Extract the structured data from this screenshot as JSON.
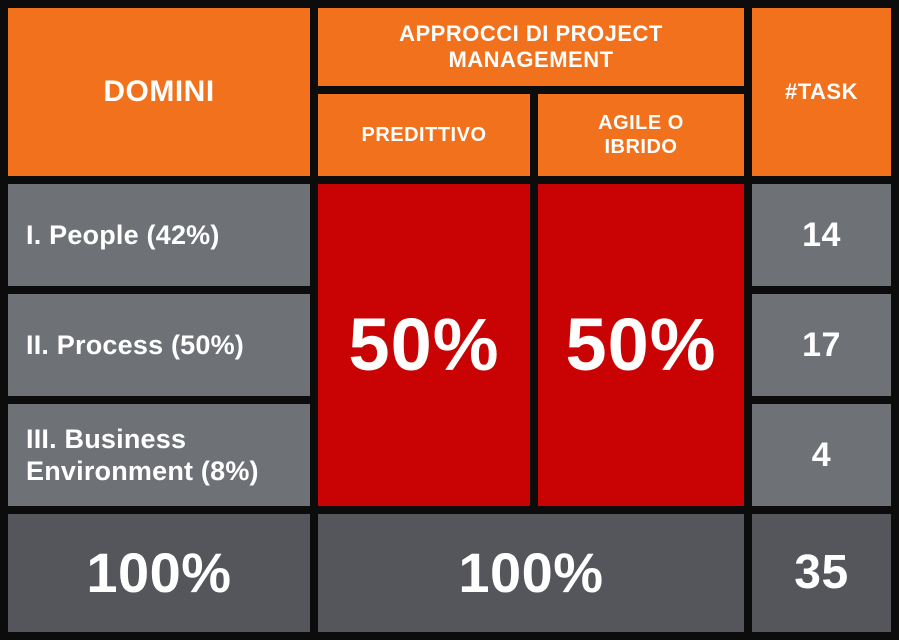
{
  "colors": {
    "orange": "#F2711C",
    "red": "#C90303",
    "gray": "#6E7277",
    "dark_gray": "#54565B",
    "background": "#0C0C0C",
    "text": "#FFFFFF"
  },
  "header": {
    "domini": "DOMINI",
    "approcci": "APPROCCI DI PROJECT\nMANAGEMENT",
    "predittivo": "PREDITTIVO",
    "agile": "AGILE O\nIBRIDO",
    "task": "#TASK"
  },
  "rows": [
    {
      "domain": "I. People (42%)",
      "tasks": "14"
    },
    {
      "domain": "II. Process (50%)",
      "tasks": "17"
    },
    {
      "domain": "III. Business Environment (8%)",
      "tasks": "4"
    }
  ],
  "approach_values": {
    "predittivo": "50%",
    "agile": "50%"
  },
  "totals": {
    "domini": "100%",
    "approcci": "100%",
    "task": "35"
  },
  "chart_data": {
    "type": "table",
    "title": "APPROCCI DI PROJECT MANAGEMENT",
    "columns": [
      "DOMINI",
      "PREDITTIVO",
      "AGILE O IBRIDO",
      "#TASK"
    ],
    "rows": [
      {
        "domini": "I. People",
        "domini_pct": 42,
        "task": 14
      },
      {
        "domini": "II. Process",
        "domini_pct": 50,
        "task": 17
      },
      {
        "domini": "III. Business Environment",
        "domini_pct": 8,
        "task": 4
      }
    ],
    "approach_split": {
      "predittivo_pct": 50,
      "agile_o_ibrido_pct": 50
    },
    "totals": {
      "domini_pct": 100,
      "approcci_pct": 100,
      "task": 35
    }
  }
}
